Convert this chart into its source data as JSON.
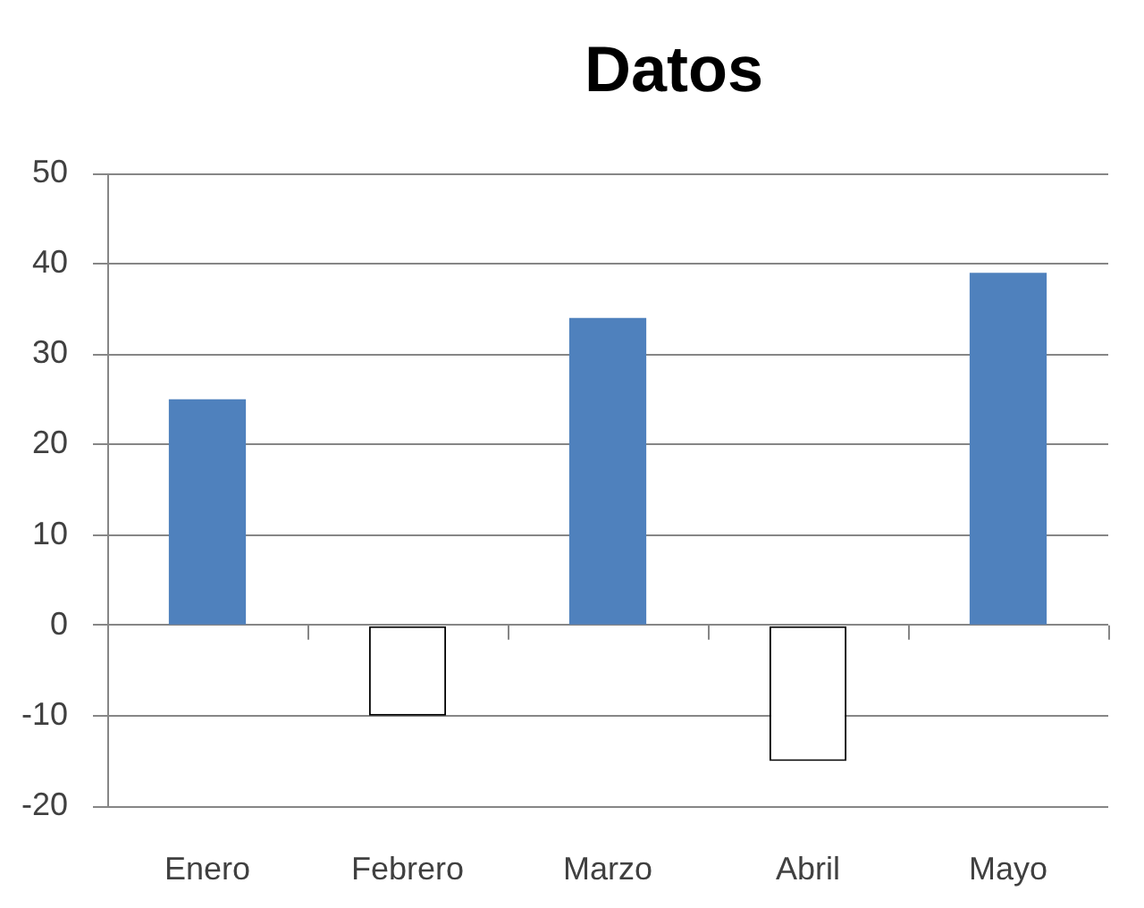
{
  "chart_data": {
    "type": "bar",
    "title": "Datos",
    "categories": [
      "Enero",
      "Febrero",
      "Marzo",
      "Abril",
      "Mayo"
    ],
    "values": [
      25,
      -10,
      34,
      -15,
      39
    ],
    "colors": [
      "#4f81bd",
      "#ffffff",
      "#4f81bd",
      "#ffffff",
      "#4f81bd"
    ],
    "ylim": [
      -20,
      50
    ],
    "yticks": [
      -20,
      -10,
      0,
      10,
      20,
      30,
      40,
      50
    ],
    "grid": "y"
  }
}
